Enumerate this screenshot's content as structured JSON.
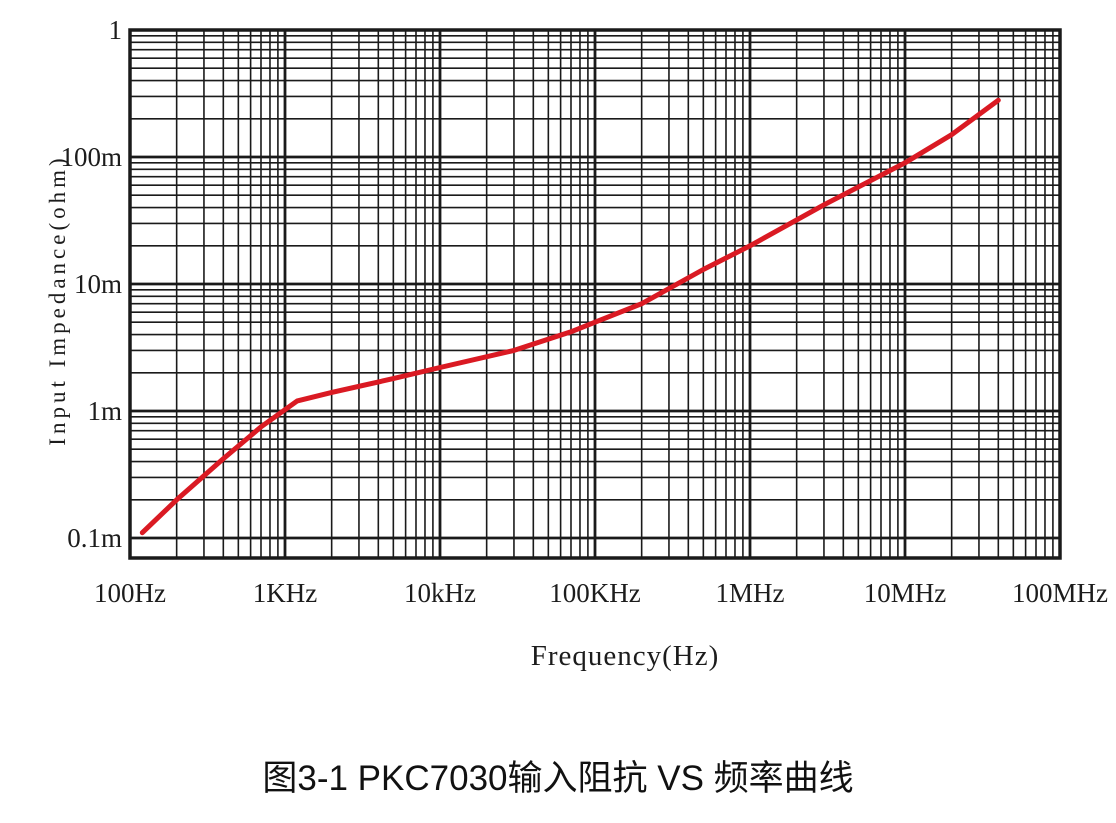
{
  "figure": {
    "caption": "图3-1 PKC7030输入阻抗 VS 频率曲线"
  },
  "chart_data": {
    "type": "line",
    "title": "PKC7030 Input Impedance vs Frequency",
    "x_scale": "log",
    "y_scale": "log",
    "xlabel": "Frequency(Hz)",
    "ylabel": "Input Impedance(ohm)",
    "x_range_hz": [
      100,
      100000000
    ],
    "y_range_ohm": [
      0.0001,
      1
    ],
    "x_tick_values_hz": [
      100,
      1000,
      10000,
      100000,
      1000000,
      10000000,
      100000000
    ],
    "x_tick_labels": [
      "100Hz",
      "1KHz",
      "10kHz",
      "100KHz",
      "1MHz",
      "10MHz",
      "100MHz"
    ],
    "y_tick_values_ohm": [
      1,
      0.1,
      0.01,
      0.001,
      0.0001
    ],
    "y_tick_labels": [
      "1",
      "100m",
      "10m",
      "1m",
      "0.1m"
    ],
    "grid": "major and minor log gridlines, both axes, full frame",
    "grid_color": "#1a1a1a",
    "line_color": "#da1a23",
    "series": [
      {
        "name": "PKC7030 input impedance",
        "points_hz_ohm": [
          [
            120,
            0.00011
          ],
          [
            200,
            0.0002
          ],
          [
            400,
            0.00042
          ],
          [
            700,
            0.00075
          ],
          [
            1200,
            0.0012
          ],
          [
            2000,
            0.0014
          ],
          [
            5000,
            0.0018
          ],
          [
            10000,
            0.0022
          ],
          [
            30000,
            0.003
          ],
          [
            70000,
            0.0042
          ],
          [
            100000,
            0.005
          ],
          [
            200000,
            0.007
          ],
          [
            500000,
            0.013
          ],
          [
            1000000,
            0.02
          ],
          [
            3000000,
            0.042
          ],
          [
            10000000,
            0.09
          ],
          [
            20000000,
            0.15
          ],
          [
            40000000,
            0.28
          ]
        ]
      }
    ]
  }
}
